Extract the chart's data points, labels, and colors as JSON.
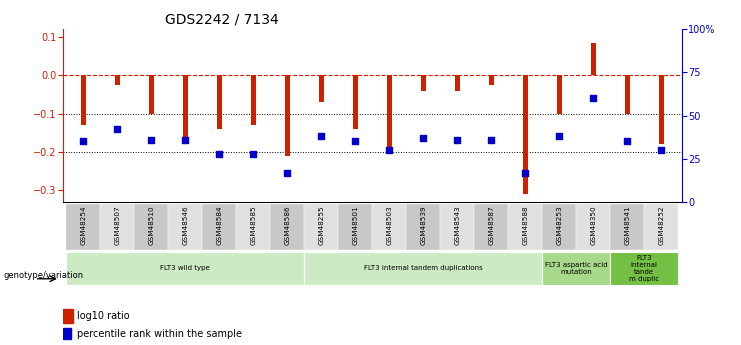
{
  "title": "GDS2242 / 7134",
  "samples": [
    "GSM48254",
    "GSM48507",
    "GSM48510",
    "GSM48546",
    "GSM48584",
    "GSM48585",
    "GSM48586",
    "GSM48255",
    "GSM48501",
    "GSM48503",
    "GSM48539",
    "GSM48543",
    "GSM48587",
    "GSM48588",
    "GSM48253",
    "GSM48350",
    "GSM48541",
    "GSM48252"
  ],
  "log10_ratio": [
    -0.13,
    -0.025,
    -0.1,
    -0.17,
    -0.14,
    -0.13,
    -0.21,
    -0.07,
    -0.14,
    -0.19,
    -0.04,
    -0.04,
    -0.025,
    -0.31,
    -0.1,
    0.085,
    -0.1,
    -0.18
  ],
  "percentile_rank": [
    35,
    42,
    36,
    36,
    28,
    28,
    17,
    38,
    35,
    30,
    37,
    36,
    36,
    17,
    38,
    60,
    35,
    30
  ],
  "groups": [
    {
      "label": "FLT3 wild type",
      "start": 0,
      "end": 7,
      "color": "#ccebc5"
    },
    {
      "label": "FLT3 internal tandem duplications",
      "start": 7,
      "end": 14,
      "color": "#ccebc5"
    },
    {
      "label": "FLT3 aspartic acid\nmutation",
      "start": 14,
      "end": 16,
      "color": "#a8d88a"
    },
    {
      "label": "FLT3\ninternal\ntande\nm duplic",
      "start": 16,
      "end": 18,
      "color": "#74c044"
    }
  ],
  "bar_color": "#cc2200",
  "dot_color": "#0000cc",
  "zero_line_color": "#cc2200",
  "ylim_left": [
    -0.33,
    0.12
  ],
  "ylim_right": [
    0,
    100
  ],
  "yticks_left": [
    0.1,
    0.0,
    -0.1,
    -0.2,
    -0.3
  ],
  "yticks_right": [
    0,
    25,
    50,
    75,
    100
  ],
  "hlines": [
    -0.1,
    -0.2
  ],
  "title_fontsize": 10,
  "tick_fontsize": 7,
  "bar_width": 0.15
}
